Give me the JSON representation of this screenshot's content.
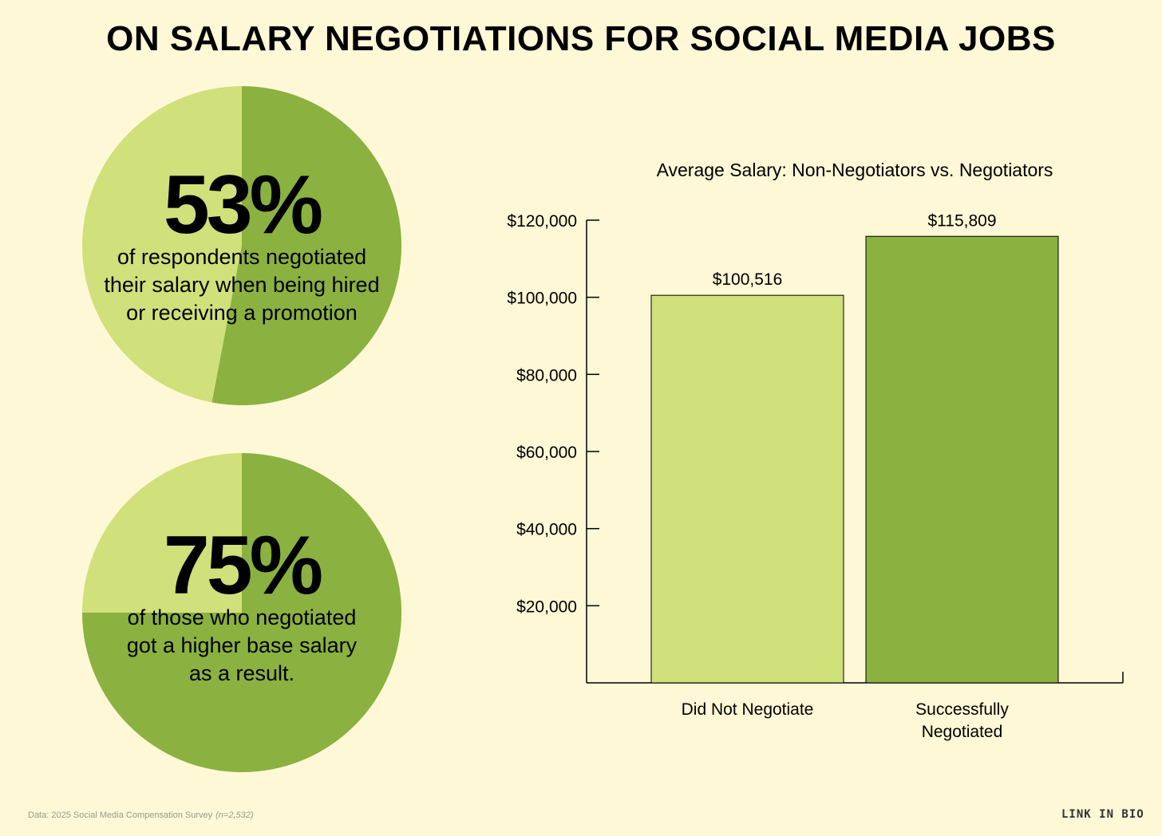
{
  "title": "ON SALARY NEGOTIATIONS FOR SOCIAL MEDIA JOBS",
  "pies": [
    {
      "percent_label": "53%",
      "value": 53,
      "desc_lines": [
        "of respondents negotiated",
        "their salary when being hired",
        "or receiving a promotion"
      ]
    },
    {
      "percent_label": "75%",
      "value": 75,
      "desc_lines": [
        "of those who negotiated",
        "got a higher base salary",
        "as a result."
      ]
    }
  ],
  "colors": {
    "background": "#fef8d6",
    "light_green": "#d0e07a",
    "dark_green": "#8bb141"
  },
  "chart_data": {
    "type": "bar",
    "title": "Average Salary: Non-Negotiators vs. Negotiators",
    "categories": [
      [
        "Did Not Negotiate"
      ],
      [
        "Successfully",
        "Negotiated"
      ]
    ],
    "values": [
      100516,
      115809
    ],
    "value_labels": [
      "$100,516",
      "$115,809"
    ],
    "ylim": [
      0,
      120000
    ],
    "yticks": [
      20000,
      40000,
      60000,
      80000,
      100000,
      120000
    ],
    "ytick_labels": [
      "$20,000",
      "$40,000",
      "$60,000",
      "$80,000",
      "$100,000",
      "$120,000"
    ],
    "bar_colors": [
      "#d0e07a",
      "#8bb141"
    ],
    "grid": false,
    "legend": "none"
  },
  "footer": {
    "source": "Data: 2025 Social Media Compensation Survey",
    "sample": "(n=2,532)",
    "brand": "LINK IN BIO"
  }
}
